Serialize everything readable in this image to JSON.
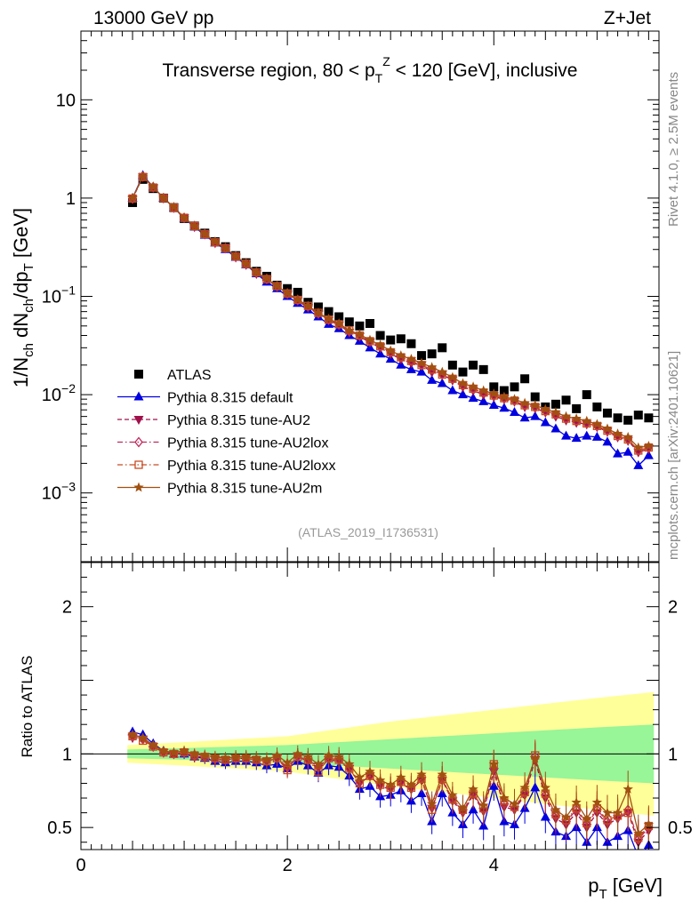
{
  "chart_data": [
    {
      "type": "scatter",
      "panel": "main",
      "title": "Transverse region, 80 < p_T^Z < 120 [GeV], inclusive",
      "header_left": "13000 GeV pp",
      "header_right": "Z+Jet",
      "ylabel": "1/N_ch dN_ch/dp_T [GeV]",
      "yscale": "log",
      "xlim": [
        0,
        5.6
      ],
      "ylim": [
        0.0002,
        50
      ],
      "ytick_labels": [
        "10",
        "1",
        "10^-1",
        "10^-2",
        "10^-3"
      ],
      "y_ticks_values": [
        10,
        1,
        0.1,
        0.01,
        0.001
      ],
      "x": [
        0.5,
        0.6,
        0.7,
        0.8,
        0.9,
        1.0,
        1.1,
        1.2,
        1.3,
        1.4,
        1.5,
        1.6,
        1.7,
        1.8,
        1.9,
        2.0,
        2.1,
        2.2,
        2.3,
        2.4,
        2.5,
        2.6,
        2.7,
        2.8,
        2.9,
        3.0,
        3.1,
        3.2,
        3.3,
        3.4,
        3.5,
        3.6,
        3.7,
        3.8,
        3.9,
        4.0,
        4.1,
        4.2,
        4.3,
        4.4,
        4.5,
        4.6,
        4.7,
        4.8,
        4.9,
        5.0,
        5.1,
        5.2,
        5.3,
        5.4,
        5.5
      ],
      "series": [
        {
          "name": "ATLAS",
          "marker": "square",
          "color": "#000000",
          "values": [
            0.9,
            1.55,
            1.25,
            1.0,
            0.8,
            0.62,
            0.52,
            0.44,
            0.36,
            0.32,
            0.26,
            0.22,
            0.18,
            0.16,
            0.13,
            0.12,
            0.11,
            0.087,
            0.078,
            0.07,
            0.062,
            0.055,
            0.05,
            0.053,
            0.04,
            0.036,
            0.037,
            0.033,
            0.025,
            0.026,
            0.03,
            0.02,
            0.017,
            0.02,
            0.018,
            0.012,
            0.011,
            0.012,
            0.0145,
            0.0095,
            0.0075,
            0.008,
            0.0088,
            0.0072,
            0.01,
            0.0075,
            0.0065,
            0.0058,
            0.0055,
            0.0062,
            0.0058
          ]
        },
        {
          "name": "Pythia 8.315 default",
          "marker": "triangle-up",
          "color": "#0000e0",
          "line": "solid",
          "values": [
            1.0,
            1.7,
            1.3,
            1.0,
            0.8,
            0.62,
            0.51,
            0.42,
            0.35,
            0.3,
            0.25,
            0.21,
            0.17,
            0.14,
            0.12,
            0.1,
            0.085,
            0.073,
            0.062,
            0.052,
            0.047,
            0.04,
            0.035,
            0.03,
            0.026,
            0.023,
            0.02,
            0.018,
            0.017,
            0.014,
            0.013,
            0.011,
            0.01,
            0.0092,
            0.0085,
            0.0078,
            0.0073,
            0.0066,
            0.0058,
            0.006,
            0.0052,
            0.0045,
            0.0038,
            0.0036,
            0.0038,
            0.0037,
            0.0033,
            0.0025,
            0.0026,
            0.0019,
            0.0024
          ]
        },
        {
          "name": "Pythia 8.315 tune-AU2",
          "marker": "triangle-down",
          "color": "#a0104a",
          "line": "dashed",
          "values": [
            0.98,
            1.65,
            1.28,
            1.0,
            0.8,
            0.63,
            0.51,
            0.43,
            0.35,
            0.31,
            0.25,
            0.21,
            0.17,
            0.15,
            0.125,
            0.105,
            0.09,
            0.077,
            0.066,
            0.057,
            0.051,
            0.043,
            0.039,
            0.034,
            0.03,
            0.026,
            0.023,
            0.021,
            0.02,
            0.017,
            0.016,
            0.014,
            0.012,
            0.011,
            0.01,
            0.0095,
            0.009,
            0.0085,
            0.0075,
            0.0073,
            0.0066,
            0.006,
            0.0055,
            0.0052,
            0.005,
            0.0047,
            0.0042,
            0.0037,
            0.0034,
            0.0026,
            0.0028
          ]
        },
        {
          "name": "Pythia 8.315 tune-AU2lox",
          "marker": "diamond-open",
          "color": "#c0285a",
          "line": "dashdot",
          "values": [
            0.99,
            1.66,
            1.29,
            1.0,
            0.8,
            0.63,
            0.52,
            0.43,
            0.355,
            0.31,
            0.255,
            0.215,
            0.175,
            0.15,
            0.127,
            0.107,
            0.092,
            0.079,
            0.067,
            0.058,
            0.052,
            0.044,
            0.04,
            0.035,
            0.031,
            0.027,
            0.024,
            0.022,
            0.02,
            0.018,
            0.016,
            0.0145,
            0.0125,
            0.0115,
            0.0105,
            0.0098,
            0.0092,
            0.0087,
            0.0078,
            0.0075,
            0.0068,
            0.0063,
            0.0057,
            0.0054,
            0.0051,
            0.0048,
            0.0043,
            0.0038,
            0.0035,
            0.0027,
            0.0029
          ]
        },
        {
          "name": "Pythia 8.315 tune-AU2loxx",
          "marker": "square-open",
          "color": "#c84a20",
          "line": "dashdot",
          "values": [
            0.99,
            1.64,
            1.28,
            1.0,
            0.8,
            0.63,
            0.52,
            0.43,
            0.355,
            0.31,
            0.255,
            0.215,
            0.175,
            0.15,
            0.127,
            0.107,
            0.092,
            0.08,
            0.068,
            0.058,
            0.052,
            0.045,
            0.04,
            0.035,
            0.031,
            0.027,
            0.024,
            0.022,
            0.02,
            0.018,
            0.016,
            0.0145,
            0.0125,
            0.0115,
            0.0105,
            0.0098,
            0.0092,
            0.0087,
            0.0078,
            0.0075,
            0.0068,
            0.0063,
            0.0057,
            0.0054,
            0.0051,
            0.0048,
            0.0043,
            0.0038,
            0.0035,
            0.0027,
            0.0029
          ]
        },
        {
          "name": "Pythia 8.315 tune-AU2m",
          "marker": "star",
          "color": "#a05010",
          "line": "solid",
          "values": [
            1.0,
            1.66,
            1.3,
            1.0,
            0.81,
            0.63,
            0.52,
            0.43,
            0.36,
            0.31,
            0.255,
            0.215,
            0.175,
            0.152,
            0.128,
            0.108,
            0.093,
            0.08,
            0.068,
            0.059,
            0.053,
            0.045,
            0.041,
            0.036,
            0.032,
            0.028,
            0.025,
            0.023,
            0.021,
            0.019,
            0.017,
            0.015,
            0.013,
            0.012,
            0.011,
            0.0102,
            0.0095,
            0.009,
            0.0082,
            0.0078,
            0.0071,
            0.0066,
            0.006,
            0.0057,
            0.0054,
            0.005,
            0.0045,
            0.004,
            0.0037,
            0.0029,
            0.003
          ]
        }
      ],
      "legend_location": "middle-left",
      "watermark": "(ATLAS_2019_I1736531)",
      "side_label_top": "Rivet 4.1.0, ≥ 2.5M events",
      "side_label_bottom": "mcplots.cern.ch [arXiv:2401.10621]"
    },
    {
      "type": "line",
      "panel": "ratio",
      "ylabel": "Ratio to ATLAS",
      "xlabel": "p_T [GeV]",
      "xlim": [
        0,
        5.6
      ],
      "ylim": [
        0.35,
        2.3
      ],
      "x_tick_labels": [
        "0",
        "2",
        "4"
      ],
      "x_ticks_values": [
        0,
        2,
        4
      ],
      "y_tick_labels": [
        "0.5",
        "1",
        "2"
      ],
      "y_ticks_values": [
        0.5,
        1,
        2
      ],
      "bands": {
        "inner_color": "#98f598",
        "outer_color": "#ffff99",
        "x_edges": [
          0.45,
          1.0,
          2.0,
          3.0,
          4.0,
          5.0,
          5.55
        ],
        "inner_half_width": [
          0.03,
          0.04,
          0.06,
          0.1,
          0.14,
          0.18,
          0.2
        ],
        "outer_half_width": [
          0.06,
          0.08,
          0.12,
          0.22,
          0.3,
          0.38,
          0.42
        ]
      },
      "series": [
        {
          "name": "Pythia 8.315 default",
          "color": "#0000e0",
          "values": [
            1.15,
            1.13,
            1.07,
            1.02,
            1.0,
            1.0,
            0.98,
            0.97,
            0.95,
            0.94,
            0.95,
            0.95,
            0.94,
            0.92,
            0.93,
            0.9,
            0.95,
            0.92,
            0.87,
            0.92,
            0.91,
            0.85,
            0.76,
            0.78,
            0.71,
            0.72,
            0.75,
            0.68,
            0.73,
            0.54,
            0.73,
            0.6,
            0.52,
            0.62,
            0.51,
            0.78,
            0.54,
            0.52,
            0.63,
            0.77,
            0.57,
            0.47,
            0.44,
            0.5,
            0.4,
            0.5,
            0.4,
            0.44,
            0.48,
            0.3,
            0.38
          ]
        },
        {
          "name": "Pythia 8.315 tune-AU2",
          "color": "#a0104a",
          "values": [
            1.11,
            1.1,
            1.05,
            1.01,
            1.0,
            1.01,
            0.98,
            0.98,
            0.96,
            0.96,
            0.97,
            0.97,
            0.96,
            0.95,
            0.97,
            0.9,
            0.98,
            0.95,
            0.9,
            0.96,
            0.95,
            0.9,
            0.8,
            0.85,
            0.78,
            0.76,
            0.8,
            0.76,
            0.82,
            0.63,
            0.82,
            0.68,
            0.6,
            0.72,
            0.61,
            0.88,
            0.64,
            0.62,
            0.72,
            0.96,
            0.7,
            0.56,
            0.52,
            0.6,
            0.5,
            0.6,
            0.52,
            0.56,
            0.6,
            0.4,
            0.48
          ]
        },
        {
          "name": "Pythia 8.315 tune-AU2lox",
          "color": "#c0285a",
          "values": [
            1.12,
            1.1,
            1.05,
            1.01,
            1.0,
            1.01,
            0.99,
            0.98,
            0.97,
            0.96,
            0.97,
            0.97,
            0.96,
            0.95,
            0.97,
            0.91,
            0.98,
            0.96,
            0.91,
            0.97,
            0.96,
            0.9,
            0.81,
            0.85,
            0.79,
            0.77,
            0.81,
            0.77,
            0.83,
            0.64,
            0.83,
            0.69,
            0.61,
            0.73,
            0.62,
            0.9,
            0.66,
            0.63,
            0.73,
            0.98,
            0.72,
            0.58,
            0.54,
            0.62,
            0.52,
            0.62,
            0.54,
            0.57,
            0.62,
            0.42,
            0.5
          ]
        },
        {
          "name": "Pythia 8.315 tune-AU2loxx",
          "color": "#c84a20",
          "values": [
            1.12,
            1.09,
            1.05,
            1.01,
            1.0,
            1.01,
            0.99,
            0.98,
            0.97,
            0.96,
            0.97,
            0.97,
            0.96,
            0.95,
            0.97,
            0.89,
            0.98,
            0.96,
            0.88,
            0.97,
            0.96,
            0.9,
            0.8,
            0.85,
            0.79,
            0.77,
            0.81,
            0.77,
            0.83,
            0.62,
            0.83,
            0.69,
            0.62,
            0.73,
            0.63,
            0.93,
            0.68,
            0.64,
            0.74,
            0.99,
            0.73,
            0.59,
            0.55,
            0.63,
            0.53,
            0.63,
            0.55,
            0.58,
            0.6,
            0.43,
            0.51
          ]
        },
        {
          "name": "Pythia 8.315 tune-AU2m",
          "color": "#a05010",
          "values": [
            1.13,
            1.11,
            1.06,
            1.02,
            1.01,
            1.02,
            1.0,
            0.99,
            0.98,
            0.97,
            0.98,
            0.98,
            0.97,
            0.96,
            0.99,
            0.94,
            1.0,
            0.98,
            0.93,
            0.99,
            0.98,
            0.93,
            0.84,
            0.88,
            0.82,
            0.79,
            0.84,
            0.79,
            0.86,
            0.66,
            0.86,
            0.72,
            0.63,
            0.76,
            0.65,
            0.93,
            0.7,
            0.66,
            0.77,
            0.97,
            0.77,
            0.62,
            0.57,
            0.67,
            0.56,
            0.67,
            0.6,
            0.6,
            0.76,
            0.46,
            0.52
          ]
        }
      ]
    }
  ]
}
